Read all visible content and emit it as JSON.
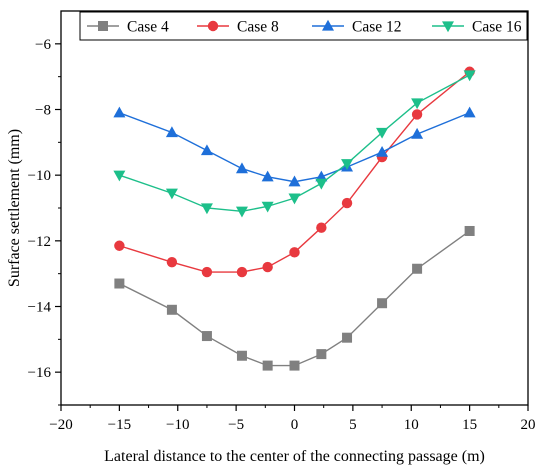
{
  "chart_data": {
    "type": "line",
    "title": "",
    "xlabel": "Lateral distance to the center of the connecting passage (m)",
    "ylabel": "Surface settlement (mm)",
    "xlim": [
      -20,
      20
    ],
    "ylim": [
      -17,
      -5
    ],
    "xticks": [
      -20,
      -15,
      -10,
      -5,
      0,
      5,
      10,
      15,
      20
    ],
    "yticks": [
      -16,
      -14,
      -12,
      -10,
      -8,
      -6
    ],
    "xtick_labels": [
      "−20",
      "−15",
      "−10",
      "−5",
      "0",
      "5",
      "10",
      "15",
      "20"
    ],
    "ytick_labels": [
      "−16",
      "−14",
      "−12",
      "−10",
      "−8",
      "−6"
    ],
    "grid": false,
    "legend_position": "top",
    "x": [
      -15,
      -10.5,
      -7.5,
      -4.5,
      -2.3,
      0,
      2.3,
      4.5,
      7.5,
      10.5,
      15
    ],
    "series": [
      {
        "name": "Case 4",
        "color": "#808080",
        "marker": "square",
        "values": [
          -13.3,
          -14.1,
          -14.9,
          -15.5,
          -15.8,
          -15.8,
          -15.45,
          -14.95,
          -13.9,
          -12.85,
          -11.7
        ]
      },
      {
        "name": "Case 8",
        "color": "#e8393f",
        "marker": "circle",
        "values": [
          -12.15,
          -12.65,
          -12.95,
          -12.95,
          -12.8,
          -12.35,
          -11.6,
          -10.85,
          -9.45,
          -8.15,
          -6.85
        ]
      },
      {
        "name": "Case 12",
        "color": "#1e6fd9",
        "marker": "triangle-up",
        "values": [
          -8.1,
          -8.7,
          -9.25,
          -9.8,
          -10.05,
          -10.2,
          -10.05,
          -9.75,
          -9.3,
          -8.75,
          -8.1
        ]
      },
      {
        "name": "Case 16",
        "color": "#1dbf8a",
        "marker": "triangle-down",
        "values": [
          -10.0,
          -10.55,
          -11.0,
          -11.1,
          -10.95,
          -10.7,
          -10.25,
          -9.65,
          -8.7,
          -7.8,
          -6.95
        ]
      }
    ]
  }
}
